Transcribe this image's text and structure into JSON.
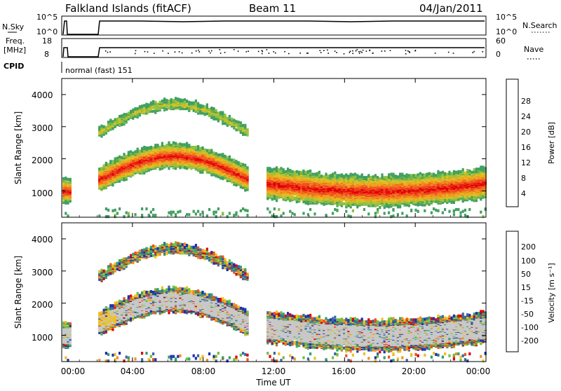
{
  "header": {
    "title": "Falkland Islands (fitACF)",
    "beam": "Beam 11",
    "date": "04/Jan/2011"
  },
  "strips": {
    "nsky_label": "N.Sky",
    "nsky_ticks": [
      "10^5",
      "10^0"
    ],
    "nsearch_label": "N.Search",
    "nsearch_ticks": [
      "10^5",
      "10^0"
    ],
    "freq_label": "Freq.",
    "freq_unit": "[MHz]",
    "freq_ticks": [
      "18",
      "8"
    ],
    "nave_label": "Nave",
    "nave_ticks": [
      "60",
      "0"
    ],
    "cpid_label": "CPID",
    "cpid_text": "normal (fast) 151"
  },
  "power_panel": {
    "ylabel": "Slant Range [km]",
    "yticks": [
      "4000",
      "3000",
      "2000",
      "1000"
    ],
    "colorbar_label": "Power [dB]",
    "colorbar_ticks": [
      "28",
      "24",
      "20",
      "16",
      "12",
      "8",
      "4"
    ],
    "colorbar_colors": [
      "#0000e0",
      "#2050c0",
      "#3a7a70",
      "#40a060",
      "#90c040",
      "#e0c020",
      "#f0a020",
      "#f07020",
      "#f04020",
      "#e00000"
    ]
  },
  "velocity_panel": {
    "ylabel": "Slant Range [km]",
    "yticks": [
      "4000",
      "3000",
      "2000",
      "1000"
    ],
    "colorbar_label": "Velocity [m s⁻¹]",
    "colorbar_ticks": [
      "200",
      "100",
      "50",
      "15",
      "-15",
      "-50",
      "-100",
      "-200"
    ],
    "colorbar_colors": [
      "#2030b0",
      "#3a6aa0",
      "#30a070",
      "#70c040",
      "#c8c8c8",
      "#f0c020",
      "#f09020",
      "#f05020",
      "#e00000"
    ]
  },
  "xaxis": {
    "label": "Time UT",
    "ticks": [
      "00:00",
      "04:00",
      "08:00",
      "12:00",
      "16:00",
      "20:00",
      "00:00"
    ]
  },
  "chart_data": [
    {
      "type": "heatmap",
      "title": "Falkland Islands (fitACF)",
      "subtitle": "Beam 11",
      "xlabel": "Time UT",
      "ylabel": "Slant Range [km]",
      "colorbar_label": "Power [dB]",
      "xlim": [
        "00:00",
        "24:00"
      ],
      "ylim": [
        180,
        4500
      ],
      "zlim": [
        0,
        30
      ],
      "data_gaps": [
        [
          "00:30",
          "02:00"
        ],
        [
          "10:30",
          "11:30"
        ]
      ],
      "regions": [
        {
          "name": "main_band_early",
          "x": [
            "00:00",
            "00:30"
          ],
          "y": [
            300,
            1700
          ],
          "value": 22
        },
        {
          "name": "main_band_morning",
          "x": [
            "02:00",
            "10:30"
          ],
          "y": [
            900,
            2400
          ],
          "value": 26
        },
        {
          "name": "upper_echoes",
          "x": [
            "02:00",
            "10:30"
          ],
          "y": [
            2500,
            4000
          ],
          "value": 14
        },
        {
          "name": "afternoon_band",
          "x": [
            "11:30",
            "24:00"
          ],
          "y": [
            500,
            1800
          ],
          "value": 18
        }
      ]
    },
    {
      "type": "heatmap",
      "title": "Falkland Islands (fitACF)",
      "xlabel": "Time UT",
      "ylabel": "Slant Range [km]",
      "colorbar_label": "Velocity [m s⁻¹]",
      "xlim": [
        "00:00",
        "24:00"
      ],
      "ylim": [
        180,
        4500
      ],
      "zlim": [
        -200,
        200
      ],
      "data_gaps": [
        [
          "00:30",
          "02:00"
        ],
        [
          "10:30",
          "11:30"
        ]
      ],
      "regions": [
        {
          "name": "ground_scatter_morning",
          "x": [
            "02:00",
            "10:30"
          ],
          "y": [
            900,
            2400
          ],
          "value": 0
        },
        {
          "name": "upper_echoes",
          "x": [
            "02:00",
            "10:30"
          ],
          "y": [
            2500,
            4000
          ],
          "value": -30
        },
        {
          "name": "afternoon_band",
          "x": [
            "11:30",
            "24:00"
          ],
          "y": [
            500,
            1800
          ],
          "value": 0
        }
      ]
    }
  ]
}
